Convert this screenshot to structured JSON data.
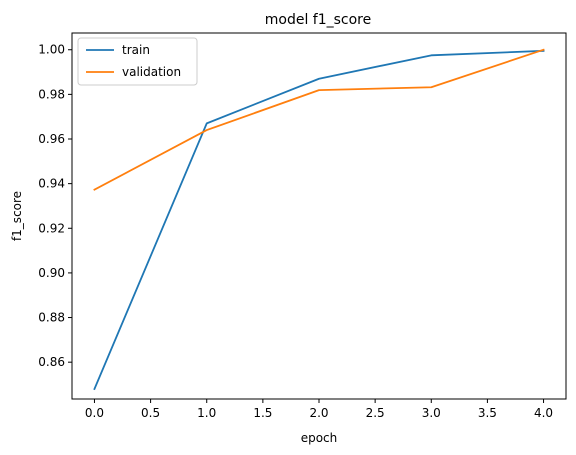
{
  "chart_data": {
    "type": "line",
    "title": "model f1_score",
    "xlabel": "epoch",
    "ylabel": "f1_score",
    "x": [
      0,
      1,
      2,
      3,
      4
    ],
    "xlim": [
      -0.2,
      4.2
    ],
    "ylim": [
      0.8435,
      1.0075
    ],
    "xticks": [
      0.0,
      0.5,
      1.0,
      1.5,
      2.0,
      2.5,
      3.0,
      3.5,
      4.0
    ],
    "yticks": [
      0.86,
      0.88,
      0.9,
      0.92,
      0.94,
      0.96,
      0.98,
      1.0
    ],
    "xtick_labels": [
      "0.0",
      "0.5",
      "1.0",
      "1.5",
      "2.0",
      "2.5",
      "3.0",
      "3.5",
      "4.0"
    ],
    "ytick_labels": [
      "0.86",
      "0.88",
      "0.90",
      "0.92",
      "0.94",
      "0.96",
      "0.98",
      "1.00"
    ],
    "grid": false,
    "legend_position": "upper-left",
    "series": [
      {
        "name": "train",
        "color": "#1f77b4",
        "values": [
          0.848,
          0.967,
          0.987,
          0.9975,
          0.9995
        ]
      },
      {
        "name": "validation",
        "color": "#ff7f0e",
        "values": [
          0.9373,
          0.964,
          0.9819,
          0.9832,
          1.0
        ]
      }
    ]
  }
}
